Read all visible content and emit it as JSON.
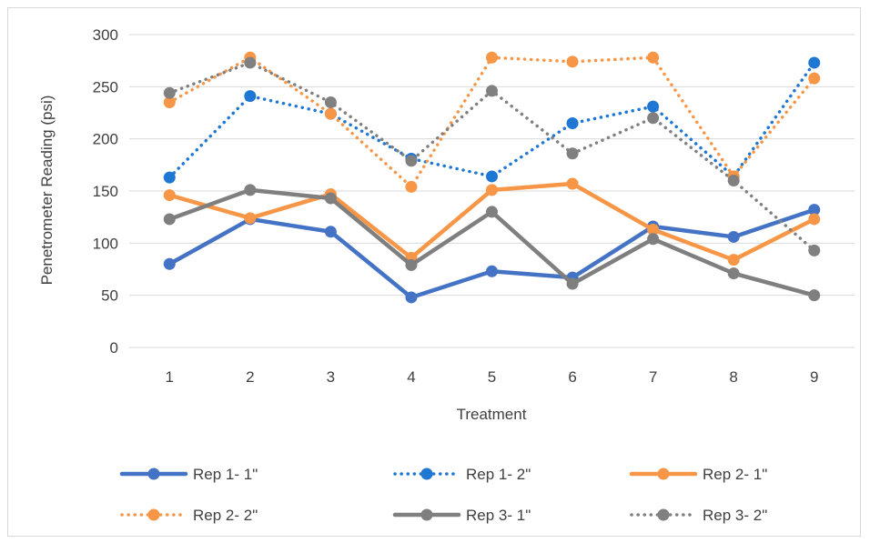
{
  "chart_data": {
    "type": "line",
    "title": "",
    "xlabel": "Treatment",
    "ylabel": "Penetrometer Reading (psi)",
    "ylim": [
      0,
      300
    ],
    "yticks": [
      "0",
      "50",
      "100",
      "150",
      "200",
      "250",
      "300"
    ],
    "categories": [
      "1",
      "2",
      "3",
      "4",
      "5",
      "6",
      "7",
      "8",
      "9"
    ],
    "grid": "horizontal",
    "legend_position": "bottom",
    "series": [
      {
        "name": "Rep 1- 1\"",
        "color": "#4472c4",
        "style": "solid",
        "values": [
          80,
          123,
          111,
          48,
          73,
          67,
          116,
          106,
          132
        ]
      },
      {
        "name": "Rep 1- 2\"",
        "color": "#1f77d4",
        "style": "dotted",
        "values": [
          163,
          241,
          224,
          181,
          164,
          215,
          231,
          164,
          273
        ]
      },
      {
        "name": "Rep 2- 1\"",
        "color": "#f79646",
        "style": "solid",
        "values": [
          146,
          124,
          147,
          86,
          151,
          157,
          113,
          84,
          123
        ]
      },
      {
        "name": "Rep 2- 2\"",
        "color": "#f79646",
        "style": "dotted",
        "values": [
          235,
          278,
          224,
          154,
          278,
          274,
          278,
          164,
          258
        ]
      },
      {
        "name": "Rep 3- 1\"",
        "color": "#7f7f7f",
        "style": "solid",
        "values": [
          123,
          151,
          143,
          79,
          130,
          61,
          104,
          71,
          50
        ]
      },
      {
        "name": "Rep 3- 2\"",
        "color": "#808080",
        "style": "dotted",
        "values": [
          244,
          273,
          235,
          179,
          246,
          186,
          220,
          160,
          93
        ]
      }
    ]
  }
}
